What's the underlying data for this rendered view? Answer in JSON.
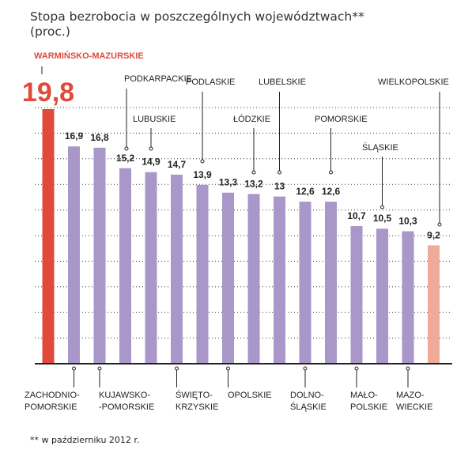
{
  "chart_data": {
    "type": "bar",
    "title_line1": "Stopa bezrobocia w poszczególnych województwach**",
    "title_line2": "(proc.)",
    "footnote": "** w październiku 2012 r.",
    "ylim": [
      0,
      20
    ],
    "grid": true,
    "value_labels": [
      "19,8",
      "16,9",
      "16,8",
      "15,2",
      "14,9",
      "14,7",
      "13,9",
      "13,3",
      "13,2",
      "13",
      "12,6",
      "12,6",
      "10,7",
      "10,5",
      "10,3",
      "9,2"
    ],
    "values": [
      19.8,
      16.9,
      16.8,
      15.2,
      14.9,
      14.7,
      13.9,
      13.3,
      13.2,
      13.0,
      12.6,
      12.6,
      10.7,
      10.5,
      10.3,
      9.2
    ],
    "colors": [
      "#e04a3b",
      "#a897c8",
      "#a897c8",
      "#a897c8",
      "#a897c8",
      "#a897c8",
      "#a897c8",
      "#a897c8",
      "#a897c8",
      "#a897c8",
      "#a897c8",
      "#a897c8",
      "#a897c8",
      "#a897c8",
      "#a897c8",
      "#f0aa98"
    ],
    "label_color_highlight": "#e04a3b",
    "callouts": [
      {
        "bar": 0,
        "lines": [
          "WARMIŃSKO-MAZURSKIE"
        ],
        "side": "top"
      },
      {
        "bar": 1,
        "lines": [
          "ZACHODNIO-",
          "POMORSKIE"
        ],
        "side": "bottom"
      },
      {
        "bar": 2,
        "lines": [
          "KUJAWSKO-",
          "-POMORSKIE"
        ],
        "side": "bottom"
      },
      {
        "bar": 3,
        "lines": [
          "PODKARPACKIE"
        ],
        "side": "top"
      },
      {
        "bar": 4,
        "lines": [
          "LUBUSKIE"
        ],
        "side": "top"
      },
      {
        "bar": 5,
        "lines": [
          "ŚWIĘTO-",
          "KRZYSKIE"
        ],
        "side": "bottom"
      },
      {
        "bar": 6,
        "lines": [
          "PODLASKIE"
        ],
        "side": "top"
      },
      {
        "bar": 7,
        "lines": [
          "OPOLSKIE"
        ],
        "side": "bottom"
      },
      {
        "bar": 8,
        "lines": [
          "ŁÓDZKIE"
        ],
        "side": "top"
      },
      {
        "bar": 9,
        "lines": [
          "LUBELSKIE"
        ],
        "side": "top"
      },
      {
        "bar": 10,
        "lines": [
          "DOLNO-",
          "ŚLĄSKIE"
        ],
        "side": "bottom"
      },
      {
        "bar": 11,
        "lines": [
          "POMORSKIE"
        ],
        "side": "top"
      },
      {
        "bar": 12,
        "lines": [
          "MAŁO-",
          "POLSKIE"
        ],
        "side": "bottom"
      },
      {
        "bar": 13,
        "lines": [
          "ŚLĄSKIE"
        ],
        "side": "top"
      },
      {
        "bar": 14,
        "lines": [
          "MAZO-",
          "WIECKIE"
        ],
        "side": "bottom"
      },
      {
        "bar": 15,
        "lines": [
          "WIELKOPOLSKIE"
        ],
        "side": "top"
      }
    ]
  }
}
